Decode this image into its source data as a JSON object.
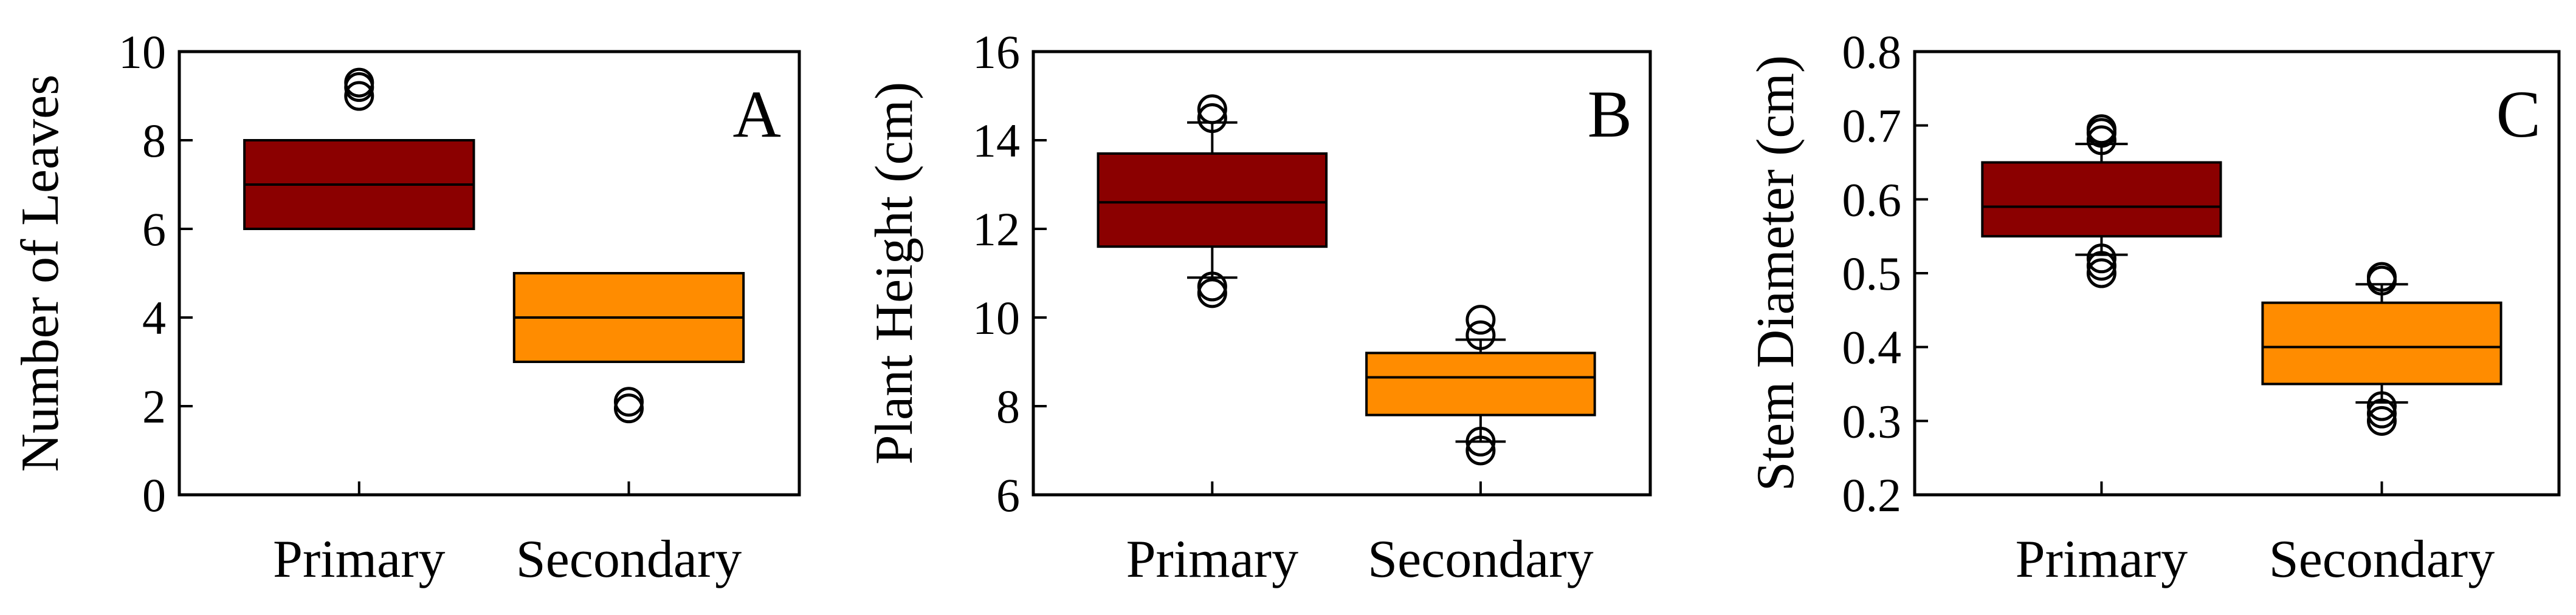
{
  "chart_data": [
    {
      "type": "box",
      "panel_label": "A",
      "ylabel": "Number of  Leaves",
      "ylim": [
        0,
        10
      ],
      "yticks": [
        0,
        2,
        4,
        6,
        8,
        10
      ],
      "tick_labels": [
        "0",
        "2",
        "4",
        "6",
        "8",
        "10"
      ],
      "categories": [
        "Primary",
        "Secondary"
      ],
      "boxes": [
        {
          "category": "Primary",
          "q1": 6,
          "median": 7,
          "q3": 8,
          "whisker_low": null,
          "whisker_high": null,
          "outliers": [
            9.0,
            9.2,
            9.3
          ],
          "color": "#8b0000"
        },
        {
          "category": "Secondary",
          "q1": 3,
          "median": 4,
          "q3": 5,
          "whisker_low": null,
          "whisker_high": null,
          "outliers": [
            1.95,
            2.1
          ],
          "color": "#ff8c00"
        }
      ]
    },
    {
      "type": "box",
      "panel_label": "B",
      "ylabel": "Plant Height (cm)",
      "ylim": [
        6,
        16
      ],
      "yticks": [
        6,
        8,
        10,
        12,
        14,
        16
      ],
      "tick_labels": [
        "6",
        "8",
        "10",
        "12",
        "14",
        "16"
      ],
      "categories": [
        "Primary",
        "Secondary"
      ],
      "boxes": [
        {
          "category": "Primary",
          "q1": 11.6,
          "median": 12.6,
          "q3": 13.7,
          "whisker_low": 10.9,
          "whisker_high": 14.4,
          "outliers": [
            10.55,
            10.7,
            14.5,
            14.7
          ],
          "color": "#8b0000"
        },
        {
          "category": "Secondary",
          "q1": 7.8,
          "median": 8.65,
          "q3": 9.2,
          "whisker_low": 7.2,
          "whisker_high": 9.5,
          "outliers": [
            7.0,
            7.2,
            9.6,
            9.95
          ],
          "color": "#ff8c00"
        }
      ]
    },
    {
      "type": "box",
      "panel_label": "C",
      "ylabel": "Stem Diameter (cm)",
      "ylim": [
        0.2,
        0.8
      ],
      "yticks": [
        0.2,
        0.3,
        0.4,
        0.5,
        0.6,
        0.7,
        0.8
      ],
      "tick_labels": [
        "0.2",
        "0.3",
        "0.4",
        "0.5",
        "0.6",
        "0.7",
        "0.8"
      ],
      "categories": [
        "Primary",
        "Secondary"
      ],
      "boxes": [
        {
          "category": "Primary",
          "q1": 0.55,
          "median": 0.59,
          "q3": 0.65,
          "whisker_low": 0.525,
          "whisker_high": 0.675,
          "outliers": [
            0.5,
            0.51,
            0.52,
            0.68,
            0.69,
            0.695
          ],
          "color": "#8b0000"
        },
        {
          "category": "Secondary",
          "q1": 0.35,
          "median": 0.4,
          "q3": 0.46,
          "whisker_low": 0.325,
          "whisker_high": 0.485,
          "outliers": [
            0.3,
            0.31,
            0.32,
            0.49,
            0.495
          ],
          "color": "#ff8c00"
        }
      ]
    }
  ]
}
